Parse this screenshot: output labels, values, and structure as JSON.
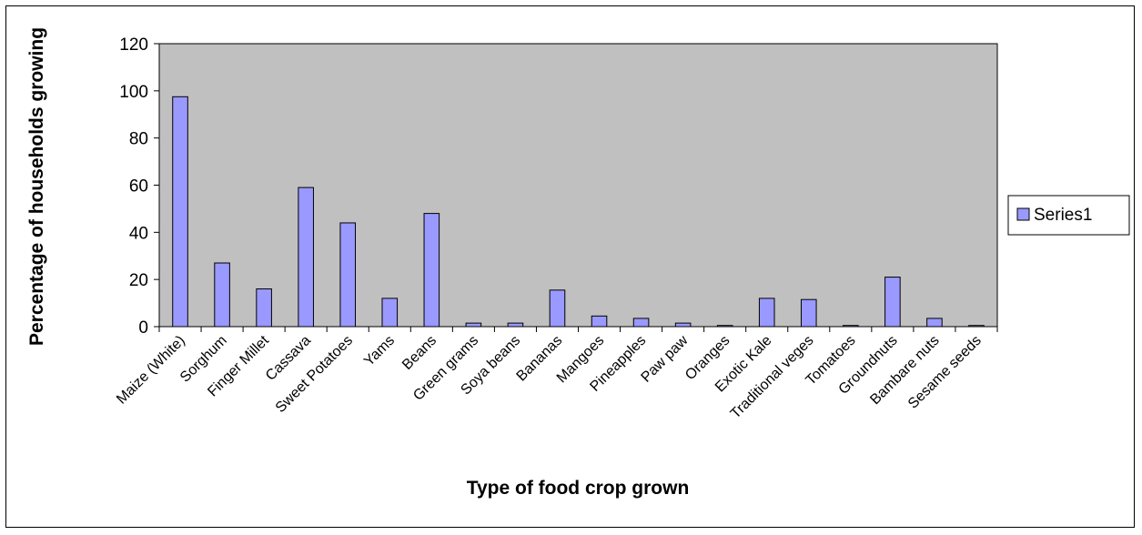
{
  "chart_data": {
    "type": "bar",
    "title": "",
    "xlabel": "Type of food crop grown",
    "ylabel": "Percentage of households growing",
    "ylim": [
      0,
      120
    ],
    "yticks": [
      0,
      20,
      40,
      60,
      80,
      100,
      120
    ],
    "grid": false,
    "legend_position": "right",
    "categories": [
      "Maize (White)",
      "Sorghum",
      "Finger Millet",
      "Cassava",
      "Sweet Potatoes",
      "Yams",
      "Beans",
      "Green grams",
      "Soya beans",
      "Bananas",
      "Mangoes",
      "Pineapples",
      "Paw paw",
      "Oranges",
      "Exotic Kale",
      "Traditional veges",
      "Tomatoes",
      "Groundnuts",
      "Bambare nuts",
      "Sesame seeds"
    ],
    "series": [
      {
        "name": "Series1",
        "color": "#9999ff",
        "values": [
          97.5,
          27,
          16,
          59,
          44,
          12,
          48,
          1.5,
          1.5,
          15.5,
          4.5,
          3.5,
          1.5,
          0.5,
          12,
          11.5,
          0.5,
          21,
          3.5,
          0.5
        ]
      }
    ],
    "plot_background": "#c0c0c0"
  }
}
